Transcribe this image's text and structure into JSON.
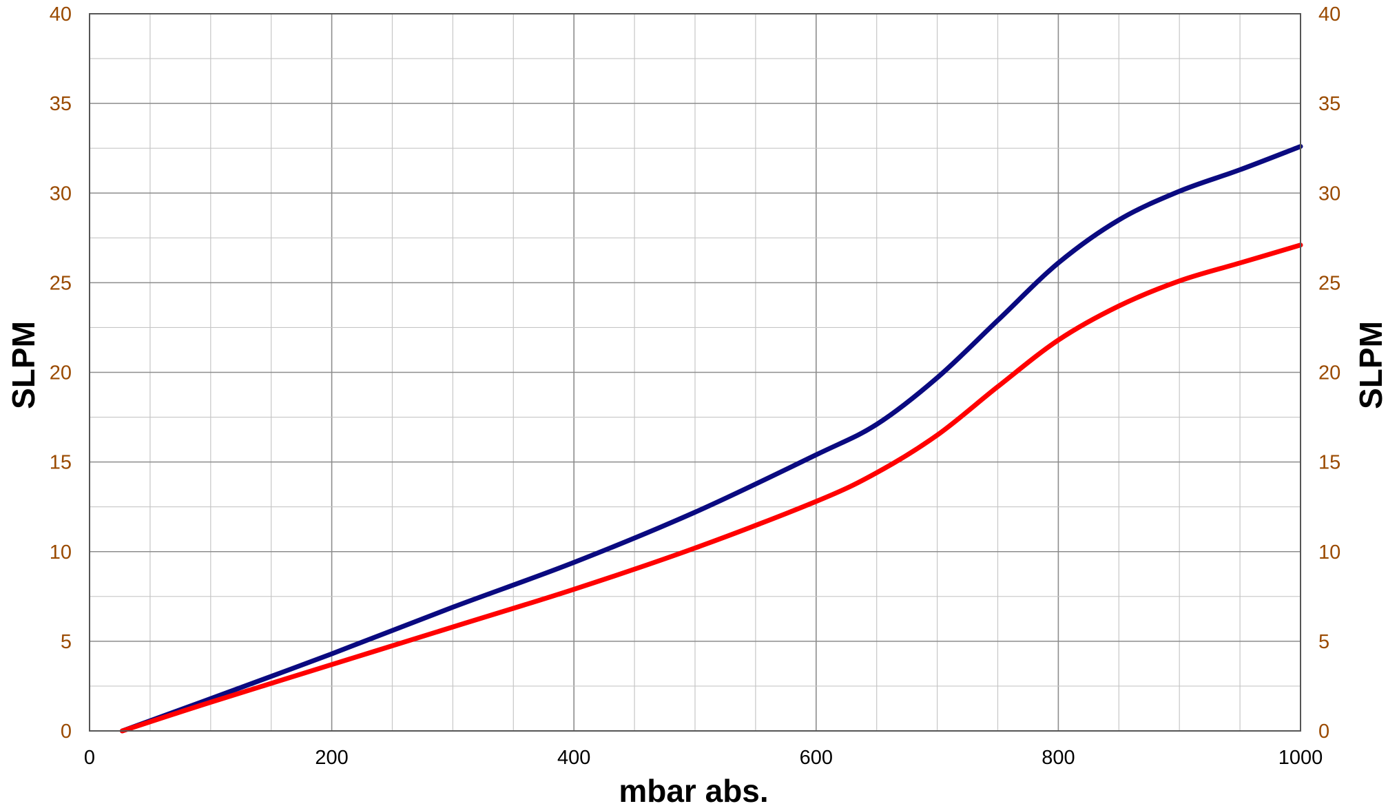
{
  "chart_data": {
    "type": "line",
    "title": "",
    "xlabel": "mbar abs.",
    "ylabel_left": "SLPM",
    "ylabel_right": "SLPM",
    "xlim": [
      0,
      1000
    ],
    "ylim": [
      0,
      40
    ],
    "x_ticks": [
      0,
      200,
      400,
      600,
      800,
      1000
    ],
    "y_ticks": [
      0,
      5,
      10,
      15,
      20,
      25,
      30,
      35,
      40
    ],
    "x_minor_step": 50,
    "y_minor_step": 2.5,
    "grid": true,
    "legend": "none",
    "colors": {
      "x_tick_text": "#000000",
      "y_tick_text": "#9a4a00",
      "grid_major": "#8c8c8c",
      "grid_minor": "#c6c6c6",
      "frame": "#555555"
    },
    "series": [
      {
        "color": "#0a0a80",
        "points": [
          [
            27,
            0
          ],
          [
            100,
            1.8
          ],
          [
            200,
            4.3
          ],
          [
            300,
            6.9
          ],
          [
            400,
            9.4
          ],
          [
            500,
            12.2
          ],
          [
            600,
            15.4
          ],
          [
            650,
            17.1
          ],
          [
            700,
            19.7
          ],
          [
            750,
            22.9
          ],
          [
            800,
            26.1
          ],
          [
            850,
            28.5
          ],
          [
            900,
            30.1
          ],
          [
            950,
            31.3
          ],
          [
            1000,
            32.6
          ]
        ]
      },
      {
        "color": "#ff0000",
        "points": [
          [
            27,
            0
          ],
          [
            100,
            1.6
          ],
          [
            200,
            3.7
          ],
          [
            300,
            5.8
          ],
          [
            400,
            7.9
          ],
          [
            500,
            10.2
          ],
          [
            600,
            12.8
          ],
          [
            650,
            14.4
          ],
          [
            700,
            16.5
          ],
          [
            750,
            19.2
          ],
          [
            800,
            21.8
          ],
          [
            850,
            23.7
          ],
          [
            900,
            25.1
          ],
          [
            950,
            26.1
          ],
          [
            1000,
            27.1
          ]
        ]
      }
    ]
  }
}
